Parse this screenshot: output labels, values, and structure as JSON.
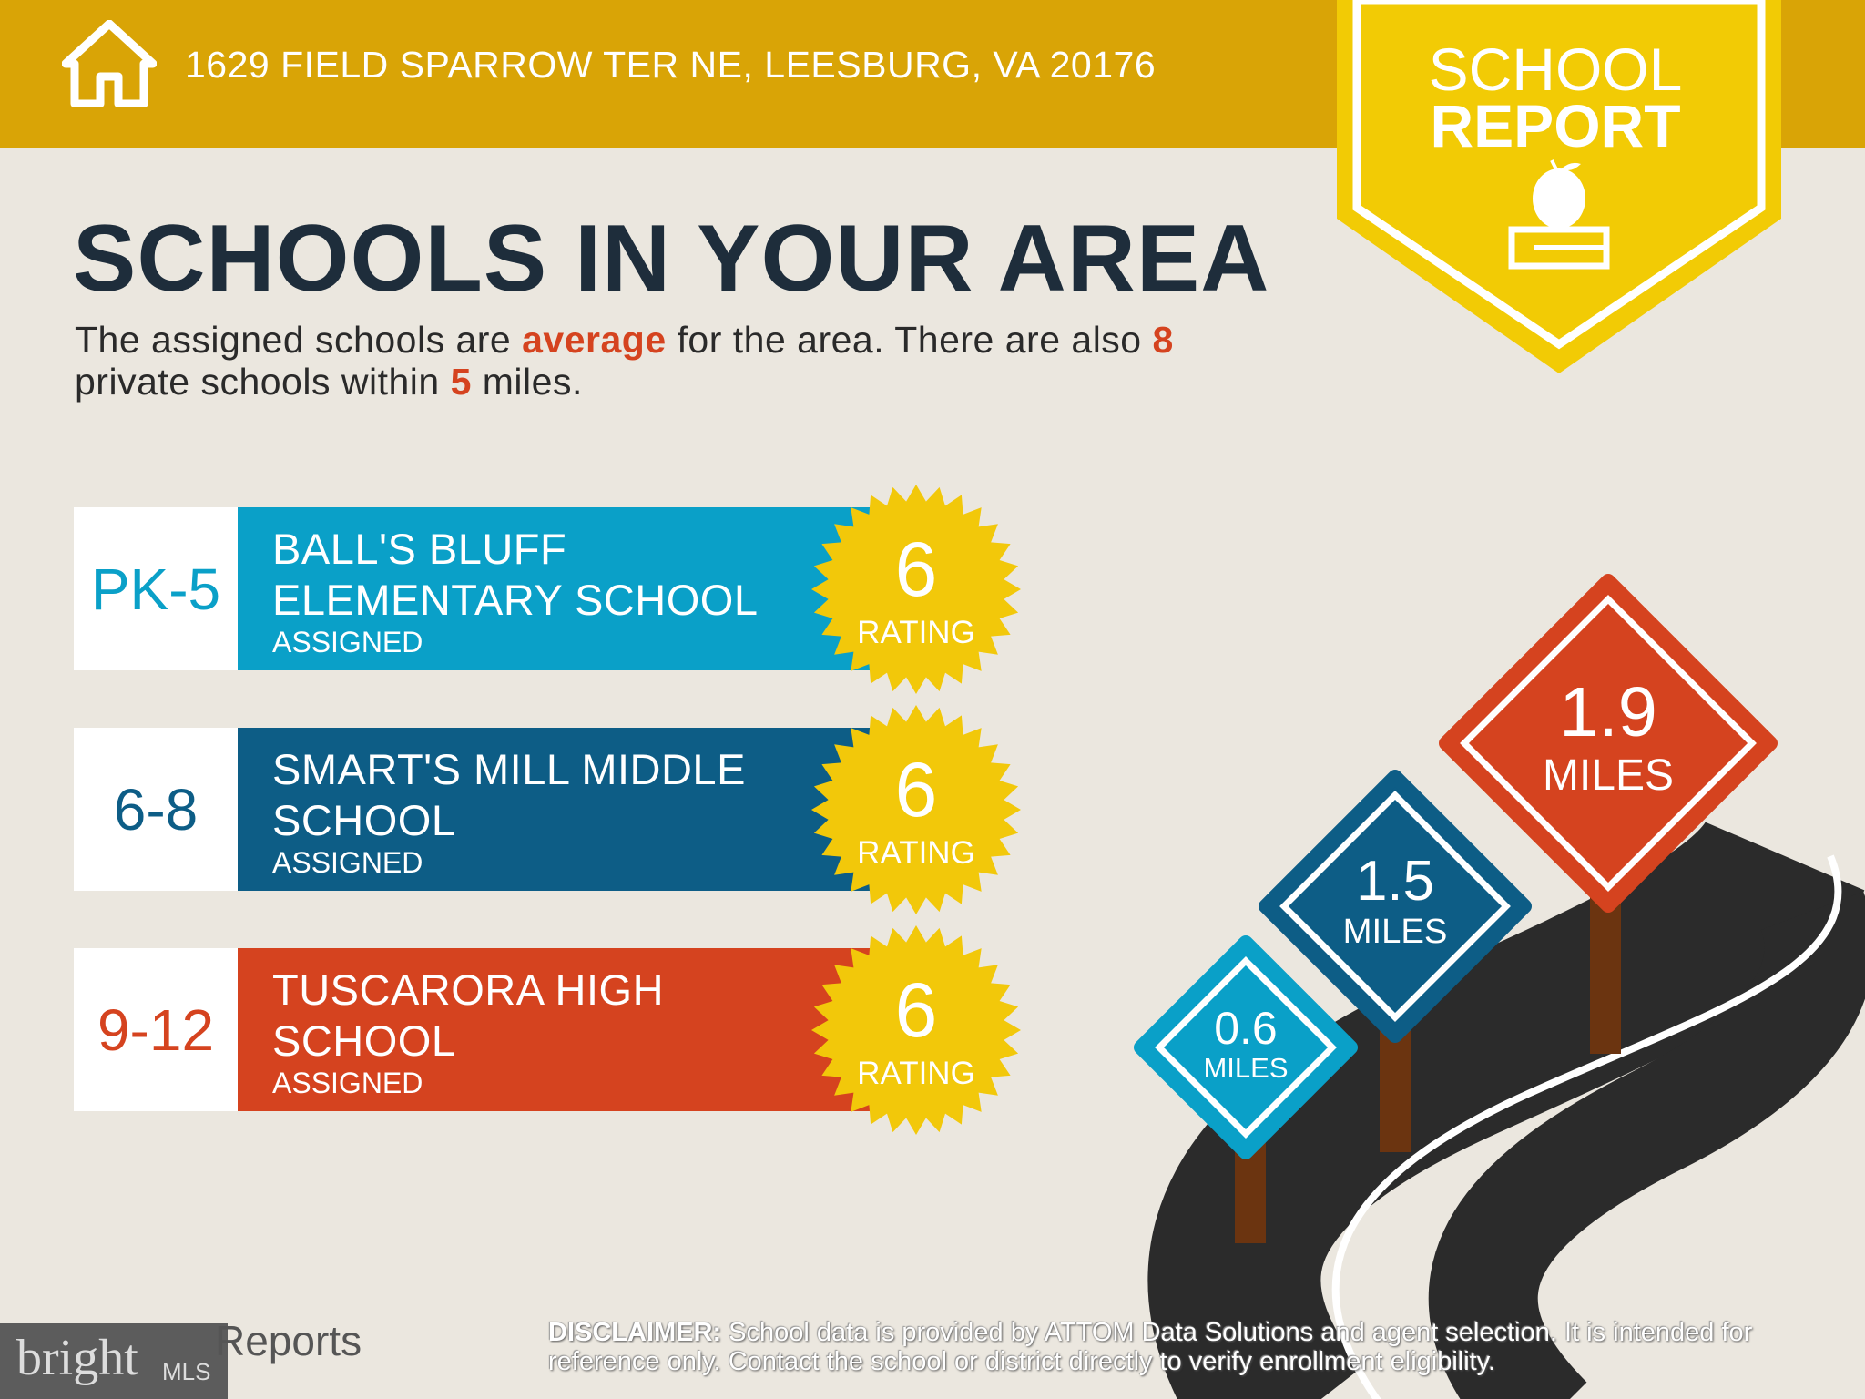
{
  "header": {
    "address": "1629 FIELD SPARROW TER NE, LEESBURG, VA 20176",
    "icon": "house-icon"
  },
  "badge": {
    "line1": "SCHOOL",
    "line2": "REPORT",
    "icon": "apple-on-book-icon"
  },
  "heading": "SCHOOLS IN YOUR AREA",
  "intro": {
    "p1": "The assigned schools are ",
    "quality": "average",
    "p2": " for the area. There are also ",
    "private_count": "8",
    "p3": " private schools within ",
    "radius": "5",
    "p4": " miles."
  },
  "schools": [
    {
      "grade": "PK-5",
      "name1": "BALL'S BLUFF",
      "name2": "ELEMENTARY SCHOOL",
      "status": "ASSIGNED",
      "rating": "6",
      "rating_label": "RATING",
      "color": "#0aa0c8"
    },
    {
      "grade": "6-8",
      "name1": "SMART'S MILL MIDDLE",
      "name2": "SCHOOL",
      "status": "ASSIGNED",
      "rating": "6",
      "rating_label": "RATING",
      "color": "#0d5d86"
    },
    {
      "grade": "9-12",
      "name1": "TUSCARORA HIGH",
      "name2": "SCHOOL",
      "status": "ASSIGNED",
      "rating": "6",
      "rating_label": "RATING",
      "color": "#d5431f"
    }
  ],
  "signs": [
    {
      "value": "0.6",
      "unit": "MILES",
      "color": "#0aa0c8"
    },
    {
      "value": "1.5",
      "unit": "MILES",
      "color": "#0d5d86"
    },
    {
      "value": "1.9",
      "unit": "MILES",
      "color": "#d5431f"
    }
  ],
  "footer": {
    "logo_text": "bright",
    "logo_suffix": "MLS",
    "reports": "Reports",
    "disclaimer_label": "DISCLAIMER:",
    "disclaimer": " School data is provided by ATTOM Data Solutions and agent selection. It is intended for reference only. Contact the school or district directly to verify enrollment eligibility."
  },
  "colors": {
    "header": "#d9a406",
    "badge": "#f2cb05",
    "star": "#f2c80a",
    "background": "#ebe7df"
  }
}
